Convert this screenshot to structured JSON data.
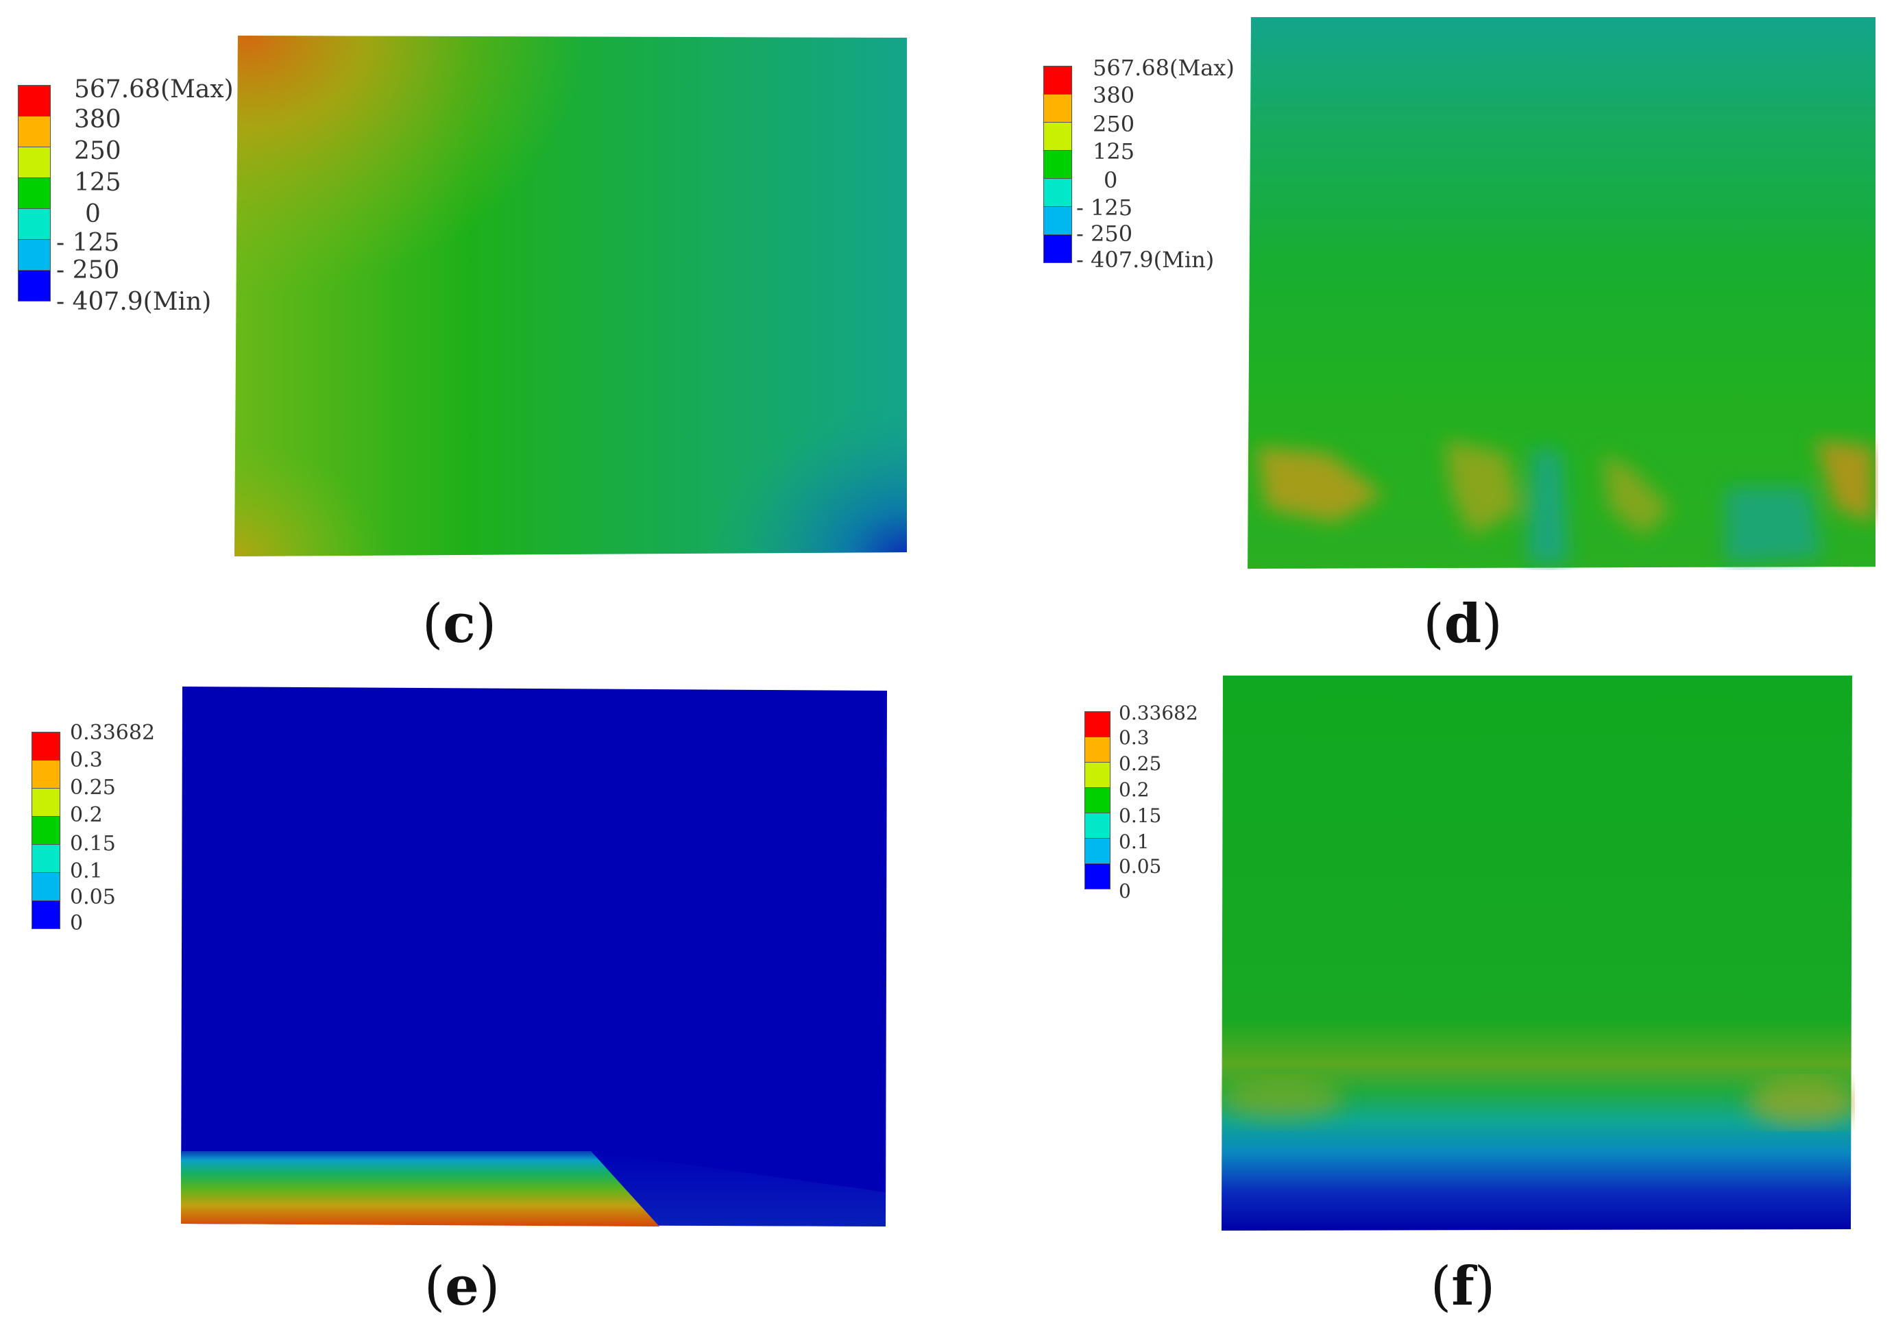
{
  "colors": {
    "scale": [
      "#ff0000",
      "#ffb300",
      "#c8f000",
      "#00d000",
      "#00e8c8",
      "#00b8f0",
      "#0000ff"
    ]
  },
  "panels": [
    {
      "id": "c",
      "label_open": "(",
      "label_letter": "c",
      "label_close": ")",
      "legend": {
        "labels": [
          "567.68(Max)",
          "380",
          "250",
          "125",
          "0",
          "- 125",
          "- 250",
          "- 407.9(Min)"
        ]
      }
    },
    {
      "id": "d",
      "label_open": "(",
      "label_letter": "d",
      "label_close": ")",
      "legend": {
        "labels": [
          "567.68(Max)",
          "380",
          "250",
          "125",
          "0",
          "- 125",
          "- 250",
          "- 407.9(Min)"
        ]
      }
    },
    {
      "id": "e",
      "label_open": "(",
      "label_letter": "e",
      "label_close": ")",
      "legend": {
        "labels": [
          "0.33682",
          "0.3",
          "0.25",
          "0.2",
          "0.15",
          "0.1",
          "0.05",
          "0"
        ]
      }
    },
    {
      "id": "f",
      "label_open": "(",
      "label_letter": "f",
      "label_close": ")",
      "legend": {
        "labels": [
          "0.33682",
          "0.3",
          "0.25",
          "0.2",
          "0.15",
          "0.1",
          "0.05",
          "0"
        ]
      }
    }
  ]
}
